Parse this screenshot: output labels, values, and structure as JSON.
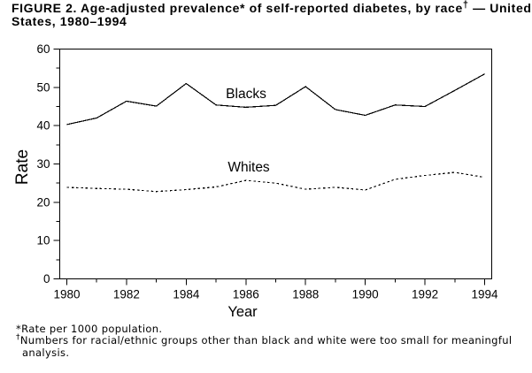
{
  "title": {
    "line1_pre": "FIGURE 2. Age-adjusted prevalence* of self-reported diabetes, by race",
    "dagger": "†",
    "line1_post": " — United",
    "line2": "States, 1980–1994"
  },
  "footnotes": {
    "asterisk_note": "*Rate per 1000 population.",
    "dagger": "†",
    "dagger_note": "Numbers for racial/ethnic groups other than black and white were too small for meaningful",
    "dagger_note_cont": "analysis."
  },
  "chart_data": {
    "type": "line",
    "title": "FIGURE 2. Age-adjusted prevalence* of self-reported diabetes, by race† — United States, 1980–1994",
    "xlabel": "Year",
    "ylabel": "Rate",
    "x": [
      1980,
      1981,
      1982,
      1983,
      1984,
      1985,
      1986,
      1987,
      1988,
      1989,
      1990,
      1991,
      1992,
      1993,
      1994
    ],
    "xtick_labels": [
      "1980",
      "1982",
      "1984",
      "1986",
      "1988",
      "1990",
      "1992",
      "1994"
    ],
    "ylim": [
      0,
      60
    ],
    "yticks_major": [
      0,
      10,
      20,
      30,
      40,
      50,
      60
    ],
    "yticks_minor": [
      5,
      15,
      25,
      35,
      45,
      55
    ],
    "grid": false,
    "legend_position": "inline-labels",
    "series": [
      {
        "name": "Blacks",
        "line_style": "solid",
        "values": [
          40.3,
          42.0,
          46.4,
          45.1,
          51.0,
          45.4,
          44.8,
          45.3,
          50.2,
          44.2,
          42.7,
          45.4,
          45.0,
          49.2,
          53.5
        ]
      },
      {
        "name": "Whites",
        "line_style": "dashed",
        "values": [
          23.9,
          23.6,
          23.4,
          22.8,
          23.3,
          24.0,
          25.7,
          25.0,
          23.4,
          23.9,
          23.2,
          26.0,
          27.0,
          27.8,
          26.5
        ]
      }
    ]
  }
}
